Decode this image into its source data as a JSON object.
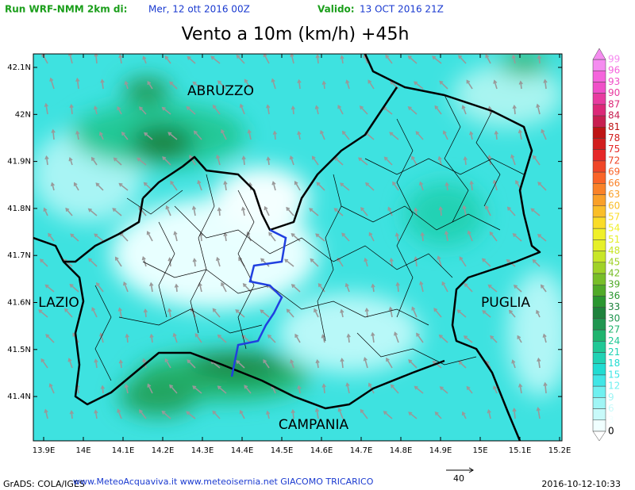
{
  "header": {
    "run_label": "Run WRF-NMM 2km di:",
    "run_date": "Mer, 12 ott 2016 00Z",
    "valid_label": "Valido:",
    "valid_date": "13 OCT 2016 21Z"
  },
  "title": "Vento a 10m (km/h) +45h",
  "lat_ticks": [
    "42.1N",
    "42N",
    "41.9N",
    "41.8N",
    "41.7N",
    "41.6N",
    "41.5N",
    "41.4N"
  ],
  "lon_ticks": [
    "13.9E",
    "14E",
    "14.1E",
    "14.2E",
    "14.3E",
    "14.4E",
    "14.5E",
    "14.6E",
    "14.7E",
    "14.8E",
    "14.9E",
    "15E",
    "15.1E",
    "15.2E"
  ],
  "regions": [
    "ABRUZZO",
    "LAZIO",
    "PUGLIA",
    "CAMPANIA"
  ],
  "colorbar": {
    "labels": [
      99,
      96,
      93,
      90,
      87,
      84,
      81,
      78,
      75,
      72,
      69,
      66,
      63,
      60,
      57,
      54,
      51,
      48,
      45,
      42,
      39,
      36,
      33,
      30,
      27,
      24,
      21,
      18,
      15,
      12,
      9,
      6,
      3,
      0
    ],
    "colors": [
      "#f58cf0",
      "#f564dc",
      "#f050c8",
      "#e83ca0",
      "#dc2878",
      "#c81e50",
      "#be1414",
      "#d21e1e",
      "#e62828",
      "#f04628",
      "#fa6428",
      "#fa8228",
      "#faa028",
      "#fabe28",
      "#fadc28",
      "#f0f028",
      "#e6f028",
      "#c8e628",
      "#a0d228",
      "#78be28",
      "#50aa28",
      "#2a9630",
      "#1e823c",
      "#209650",
      "#20b46e",
      "#20c896",
      "#20d2b4",
      "#20dcd2",
      "#40e6e6",
      "#70f0f0",
      "#a0f5f5",
      "#c8fafa",
      "#f0ffff"
    ]
  },
  "footer": {
    "grads": "GrADS: COLA/IGES",
    "sites": "www.MeteoAcquaviva.it www.meteoisernia.net GIACOMO TRICARICO",
    "arrow_label": "40",
    "timestamp": "2016-10-12-10:33"
  }
}
